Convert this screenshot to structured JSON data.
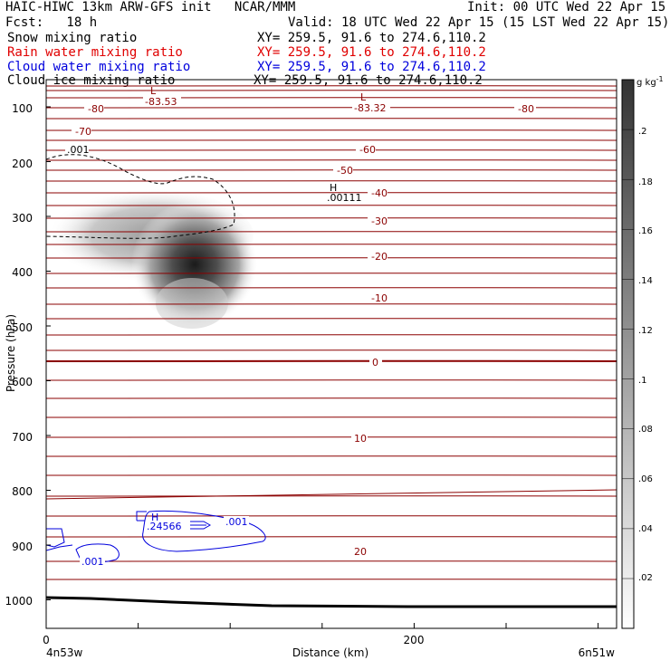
{
  "header": {
    "line1_left": "HAIC-HIWC 13km ARW-GFS init   NCAR/MMM",
    "line1_right": "Init: 00 UTC Wed 22 Apr 15",
    "line2_left": "Fcst:   18 h",
    "line2_right": "Valid: 18 UTC Wed 22 Apr 15 (15 LST Wed 22 Apr 15)",
    "fields": [
      {
        "name": "Snow mixing ratio",
        "xy": "XY= 259.5, 91.6 to 274.6,110.2",
        "color": "#000000"
      },
      {
        "name": "Rain water mixing ratio",
        "xy": "XY= 259.5, 91.6 to 274.6,110.2",
        "color": "#e00000"
      },
      {
        "name": "Cloud water mixing ratio",
        "xy": "XY= 259.5, 91.6 to 274.6,110.2",
        "color": "#0000dd"
      },
      {
        "name": "Cloud ice mixing ratio",
        "xy": "XY= 259.5, 91.6 to 274.6,110.2",
        "color": "#000000"
      }
    ]
  },
  "chart_data": {
    "type": "contour cross-section",
    "ylabel": "Pressure (hPa)",
    "xlabel": "Distance (km)",
    "x_left_label": "4n53w",
    "x_right_label": "6n51w",
    "xlim": [
      0,
      310
    ],
    "ylim": [
      1050,
      50
    ],
    "x_ticks": [
      "0",
      "200"
    ],
    "y_ticks": [
      "100",
      "200",
      "300",
      "400",
      "500",
      "600",
      "700",
      "800",
      "900",
      "1000"
    ],
    "temperature_contours": {
      "color": "#8b0000",
      "labels": [
        "-80",
        "-70",
        "-60",
        "-50",
        "-40",
        "-30",
        "-20",
        "-10",
        "0",
        "10",
        "20"
      ]
    },
    "annotations": {
      "low_left": {
        "label": "L",
        "value": "-83.53"
      },
      "low_right": {
        "label": "L",
        "value": "-83.32"
      },
      "high_ice": {
        "label": "H",
        "value": ".00111"
      },
      "ice_contour": ".001",
      "high_cloudwater": {
        "label": "H",
        "value": ".24566"
      },
      "cloudwater_contour_a": ".001",
      "cloudwater_contour_b": ".001"
    },
    "colorbar": {
      "unit": "g kg",
      "unit_exp": "-1",
      "labels": [
        ".2",
        ".18",
        ".16",
        ".14",
        ".12",
        ".1",
        ".08",
        ".06",
        ".04",
        ".02"
      ]
    }
  }
}
